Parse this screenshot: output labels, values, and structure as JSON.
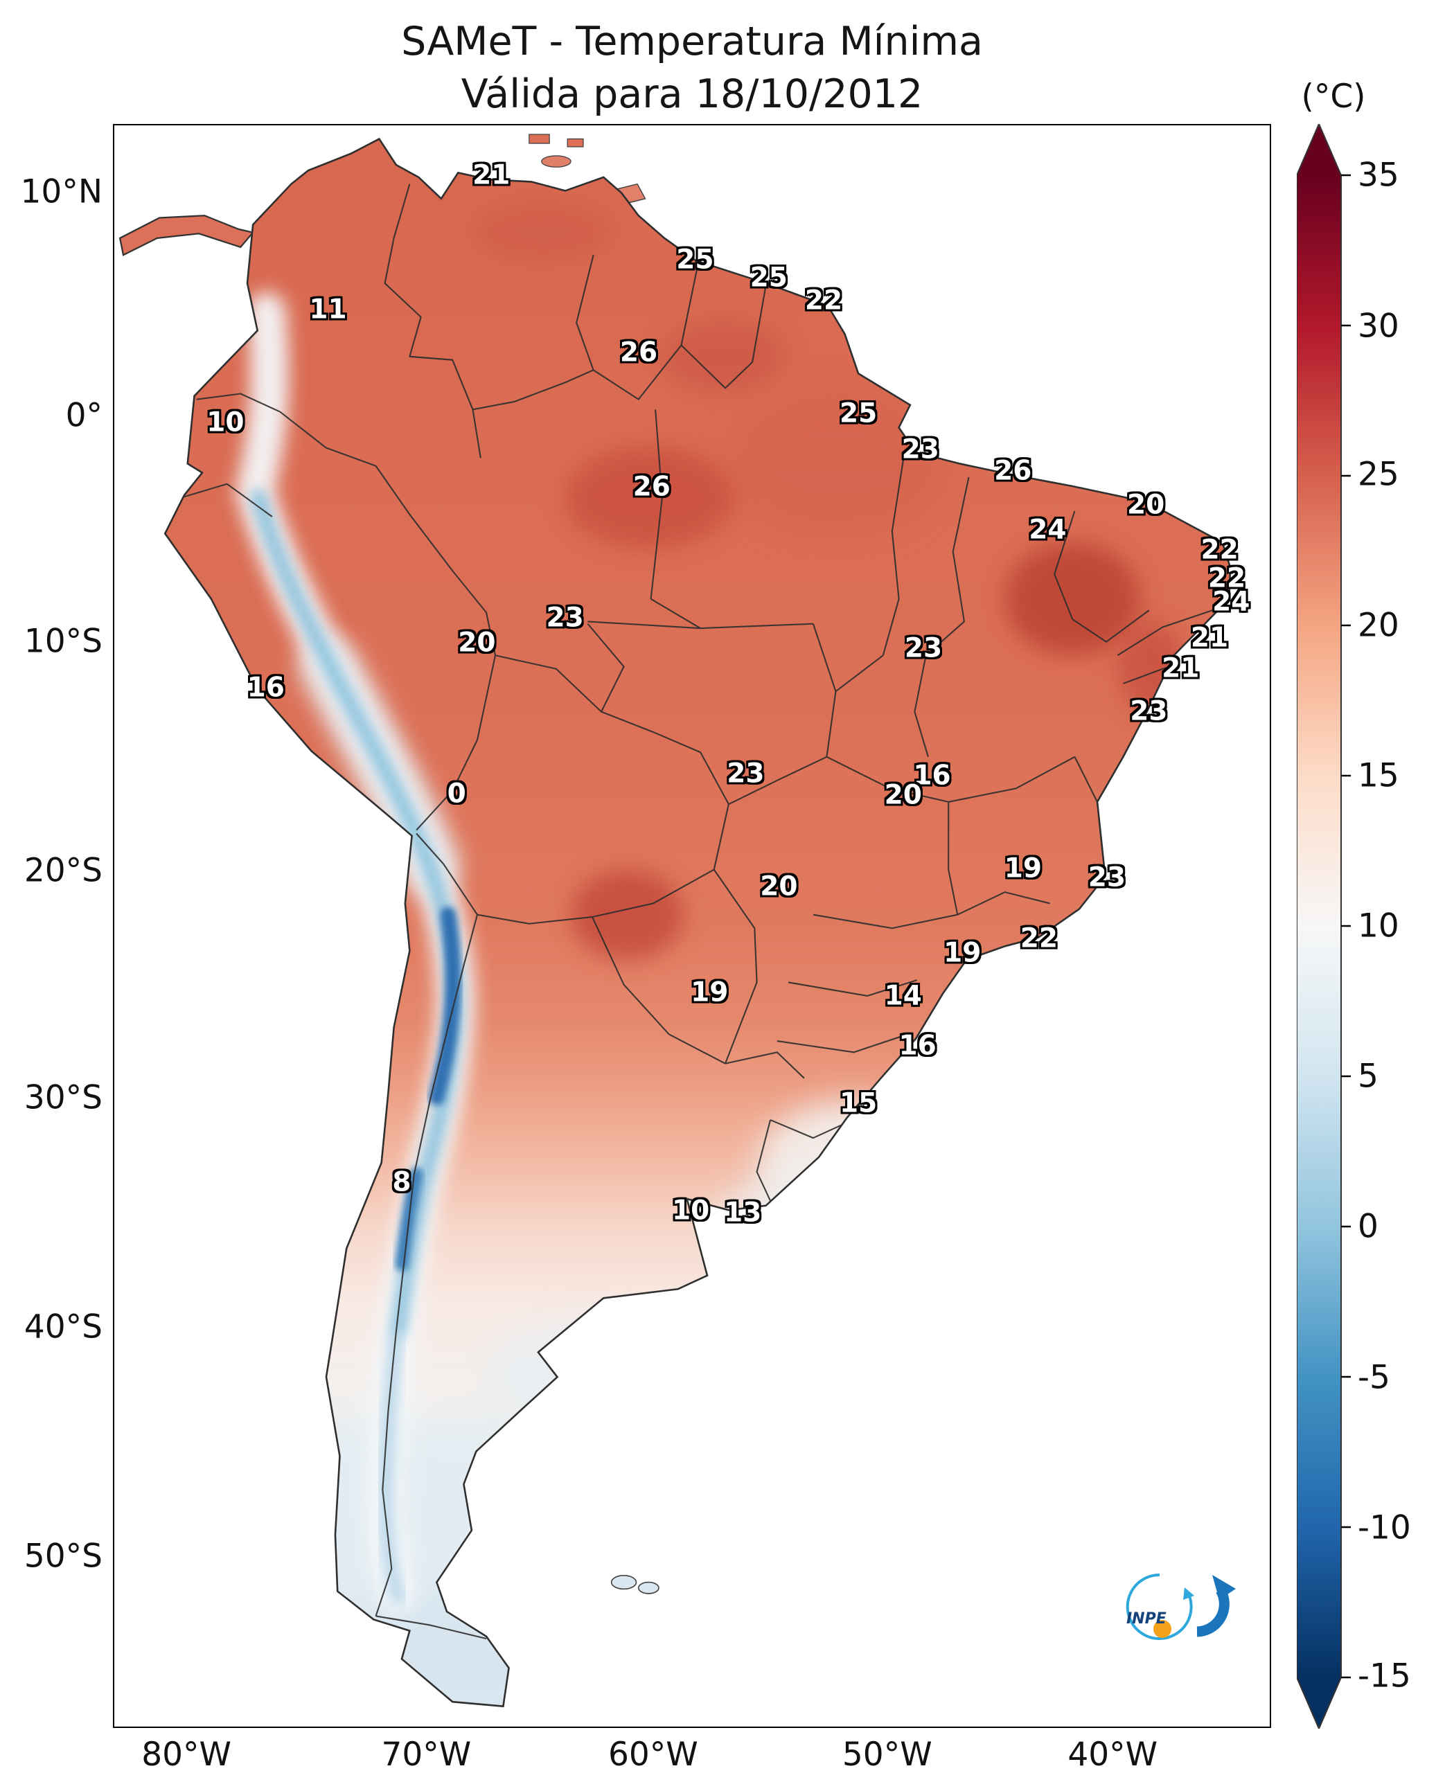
{
  "title": {
    "line1": "SAMeT - Temperatura Mínima",
    "line2": "Válida para 18/10/2012"
  },
  "axes": {
    "lat_ticks": [
      {
        "label": "10°N",
        "y": 10.7
      },
      {
        "label": "0°",
        "y": 23.2
      },
      {
        "label": "10°S",
        "y": 35.8
      },
      {
        "label": "20°S",
        "y": 48.6
      },
      {
        "label": "30°S",
        "y": 61.3
      },
      {
        "label": "40°S",
        "y": 74.1
      },
      {
        "label": "50°S",
        "y": 86.9
      }
    ],
    "lon_ticks": [
      {
        "label": "80°W",
        "x": 12.9
      },
      {
        "label": "70°W",
        "x": 29.5
      },
      {
        "label": "60°W",
        "x": 45.2
      },
      {
        "label": "50°W",
        "x": 61.4
      },
      {
        "label": "40°W",
        "x": 77.0
      }
    ]
  },
  "colorbar": {
    "unit_label": "(°C)",
    "ticks": [
      {
        "label": "35",
        "y": 9.8
      },
      {
        "label": "30",
        "y": 18.2
      },
      {
        "label": "25",
        "y": 26.5
      },
      {
        "label": "20",
        "y": 34.9
      },
      {
        "label": "15",
        "y": 43.3
      },
      {
        "label": "10",
        "y": 51.7
      },
      {
        "label": "5",
        "y": 60.1
      },
      {
        "label": "0",
        "y": 68.5
      },
      {
        "label": "-5",
        "y": 76.9
      },
      {
        "label": "-10",
        "y": 85.3
      },
      {
        "label": "-15",
        "y": 93.6
      }
    ],
    "palette_top_to_bottom": [
      "#67001f",
      "#b2182b",
      "#d6604d",
      "#f4a582",
      "#fddbc7",
      "#f7f7f7",
      "#d1e5f0",
      "#92c5de",
      "#4393c3",
      "#2166ac",
      "#053061"
    ]
  },
  "chart_data": {
    "type": "heatmap",
    "title": "SAMeT - Temperatura Mínima",
    "subtitle": "Válida para 18/10/2012",
    "unit": "°C",
    "value_range": [
      -15,
      35
    ],
    "lat_range": [
      "10°N",
      "50°S"
    ],
    "lon_range": [
      "80°W",
      "40°W"
    ],
    "legend_position": "right",
    "stations": [
      {
        "value": "21",
        "x": 34.0,
        "y": 9.8
      },
      {
        "value": "25",
        "x": 48.1,
        "y": 14.5
      },
      {
        "value": "25",
        "x": 53.2,
        "y": 15.5
      },
      {
        "value": "22",
        "x": 57.0,
        "y": 16.8
      },
      {
        "value": "11",
        "x": 22.7,
        "y": 17.3
      },
      {
        "value": "26",
        "x": 44.2,
        "y": 19.7
      },
      {
        "value": "10",
        "x": 15.6,
        "y": 23.6
      },
      {
        "value": "25",
        "x": 59.4,
        "y": 23.1
      },
      {
        "value": "23",
        "x": 63.7,
        "y": 25.1
      },
      {
        "value": "26",
        "x": 70.1,
        "y": 26.3
      },
      {
        "value": "26",
        "x": 45.1,
        "y": 27.2
      },
      {
        "value": "20",
        "x": 79.3,
        "y": 28.2
      },
      {
        "value": "24",
        "x": 72.5,
        "y": 29.6
      },
      {
        "value": "22",
        "x": 84.4,
        "y": 30.7
      },
      {
        "value": "22",
        "x": 84.9,
        "y": 32.3
      },
      {
        "value": "24",
        "x": 85.2,
        "y": 33.6
      },
      {
        "value": "23",
        "x": 39.1,
        "y": 34.5
      },
      {
        "value": "20",
        "x": 33.0,
        "y": 35.9
      },
      {
        "value": "21",
        "x": 83.7,
        "y": 35.6
      },
      {
        "value": "21",
        "x": 81.7,
        "y": 37.3
      },
      {
        "value": "23",
        "x": 63.9,
        "y": 36.2
      },
      {
        "value": "16",
        "x": 18.4,
        "y": 38.4
      },
      {
        "value": "23",
        "x": 79.5,
        "y": 39.7
      },
      {
        "value": "0",
        "x": 31.6,
        "y": 44.3
      },
      {
        "value": "23",
        "x": 51.6,
        "y": 43.2
      },
      {
        "value": "16",
        "x": 64.5,
        "y": 43.3
      },
      {
        "value": "20",
        "x": 62.5,
        "y": 44.4
      },
      {
        "value": "20",
        "x": 53.9,
        "y": 49.5
      },
      {
        "value": "19",
        "x": 70.8,
        "y": 48.5
      },
      {
        "value": "23",
        "x": 76.6,
        "y": 49.0
      },
      {
        "value": "19",
        "x": 66.6,
        "y": 53.2
      },
      {
        "value": "22",
        "x": 71.9,
        "y": 52.4
      },
      {
        "value": "19",
        "x": 49.1,
        "y": 55.4
      },
      {
        "value": "14",
        "x": 62.5,
        "y": 55.6
      },
      {
        "value": "16",
        "x": 63.5,
        "y": 58.4
      },
      {
        "value": "15",
        "x": 59.4,
        "y": 61.6
      },
      {
        "value": "8",
        "x": 27.8,
        "y": 66.0
      },
      {
        "value": "10",
        "x": 47.8,
        "y": 67.6
      },
      {
        "value": "13",
        "x": 51.4,
        "y": 67.7
      }
    ]
  },
  "logo": {
    "text": "INPE",
    "accent_orange": "#f5a11c",
    "accent_blue": "#1b75bb",
    "accent_lightblue": "#2ea8dc"
  }
}
